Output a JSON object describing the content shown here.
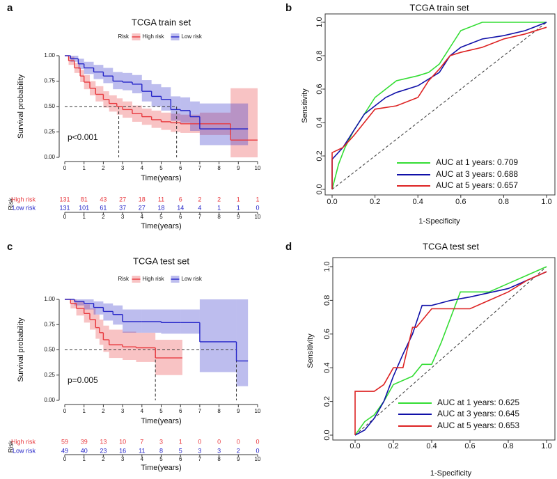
{
  "chart_data": [
    {
      "type": "survival",
      "panel": "a",
      "title": "TCGA train set",
      "xlabel": "Time(years)",
      "ylabel": "Survival probability",
      "legend_title": "Risk",
      "annotation": "p<0.001",
      "xlim": [
        0,
        10
      ],
      "xticks": [
        0,
        1,
        2,
        3,
        4,
        5,
        6,
        7,
        8,
        9,
        10
      ],
      "ylim": [
        0,
        1
      ],
      "yticks": [
        {
          "value": 0,
          "label": "0.00"
        },
        {
          "value": 0.25,
          "label": "0.25"
        },
        {
          "value": 0.5,
          "label": "0.50"
        },
        {
          "value": 0.75,
          "label": "0.75"
        },
        {
          "value": 1,
          "label": "1.00"
        }
      ],
      "median_level": 0.5,
      "median_survival": [
        2.8,
        5.8
      ],
      "series": [
        {
          "name": "High risk",
          "color": "#e8383d",
          "x": [
            0,
            0.2,
            0.5,
            0.8,
            1,
            1.3,
            1.6,
            2,
            2.3,
            2.7,
            3,
            3.5,
            4,
            4.5,
            5,
            5.5,
            6,
            7,
            8.6,
            10
          ],
          "values": [
            1,
            0.95,
            0.88,
            0.8,
            0.74,
            0.68,
            0.62,
            0.57,
            0.53,
            0.5,
            0.47,
            0.43,
            0.4,
            0.37,
            0.35,
            0.34,
            0.33,
            0.33,
            0.17,
            0.17
          ],
          "lower": [
            1,
            0.91,
            0.83,
            0.74,
            0.67,
            0.61,
            0.55,
            0.49,
            0.45,
            0.42,
            0.39,
            0.35,
            0.32,
            0.29,
            0.27,
            0.25,
            0.24,
            0.22,
            0,
            0
          ],
          "upper": [
            1,
            0.99,
            0.93,
            0.86,
            0.81,
            0.75,
            0.7,
            0.65,
            0.61,
            0.58,
            0.55,
            0.51,
            0.48,
            0.46,
            0.44,
            0.43,
            0.42,
            0.44,
            0.68,
            0.68
          ]
        },
        {
          "name": "Low risk",
          "color": "#2424c8",
          "x": [
            0,
            0.3,
            0.7,
            1,
            1.5,
            2,
            2.5,
            3,
            3.5,
            4,
            4.5,
            5,
            5.5,
            6,
            6.5,
            7,
            9.5
          ],
          "values": [
            1,
            0.97,
            0.92,
            0.88,
            0.84,
            0.8,
            0.75,
            0.74,
            0.72,
            0.65,
            0.6,
            0.57,
            0.47,
            0.46,
            0.4,
            0.28,
            0.28
          ],
          "lower": [
            1,
            0.94,
            0.87,
            0.82,
            0.77,
            0.73,
            0.67,
            0.66,
            0.63,
            0.55,
            0.5,
            0.46,
            0.36,
            0.34,
            0.26,
            0.12,
            0.12
          ],
          "upper": [
            1,
            1,
            0.97,
            0.94,
            0.91,
            0.88,
            0.84,
            0.83,
            0.81,
            0.76,
            0.72,
            0.69,
            0.6,
            0.59,
            0.55,
            0.53,
            0.53
          ]
        }
      ],
      "risk_table": {
        "title": "Risk",
        "xlabel": "Time(years)",
        "x": [
          0,
          1,
          2,
          3,
          4,
          5,
          6,
          7,
          8,
          9,
          10
        ],
        "rows": [
          {
            "name": "High risk",
            "color": "#e8383d",
            "values": [
              131,
              81,
              43,
              27,
              18,
              11,
              6,
              2,
              2,
              1,
              1
            ]
          },
          {
            "name": "Low risk",
            "color": "#2424c8",
            "values": [
              131,
              101,
              61,
              37,
              27,
              18,
              14,
              4,
              1,
              1,
              0
            ]
          }
        ]
      }
    },
    {
      "type": "roc",
      "panel": "b",
      "title": "TCGA train set",
      "xlabel": "1-Specificity",
      "ylabel": "Sensitivity",
      "xlim": [
        0,
        1
      ],
      "xticks": [
        {
          "value": 0,
          "label": "0.0"
        },
        {
          "value": 0.2,
          "label": "0.2"
        },
        {
          "value": 0.4,
          "label": "0.4"
        },
        {
          "value": 0.6,
          "label": "0.6"
        },
        {
          "value": 0.8,
          "label": "0.8"
        },
        {
          "value": 1,
          "label": "1.0"
        }
      ],
      "ylim": [
        0,
        1
      ],
      "yticks": [
        {
          "value": 0,
          "label": "0.0"
        },
        {
          "value": 0.2,
          "label": "0.2"
        },
        {
          "value": 0.4,
          "label": "0.4"
        },
        {
          "value": 0.6,
          "label": "0.6"
        },
        {
          "value": 0.8,
          "label": "0.8"
        },
        {
          "value": 1,
          "label": "1.0"
        }
      ],
      "legend": "bottom-right",
      "series": [
        {
          "name": "AUC at 1 years: 0.709",
          "color": "#33dd33",
          "x": [
            0,
            0.01,
            0.03,
            0.06,
            0.1,
            0.15,
            0.2,
            0.25,
            0.3,
            0.4,
            0.45,
            0.5,
            0.55,
            0.6,
            0.7,
            0.8,
            0.9,
            1
          ],
          "values": [
            0,
            0.05,
            0.15,
            0.25,
            0.35,
            0.45,
            0.55,
            0.6,
            0.65,
            0.68,
            0.7,
            0.75,
            0.85,
            0.95,
            1,
            1,
            1,
            1
          ]
        },
        {
          "name": "AUC at 3 years: 0.688",
          "color": "#1010a8",
          "x": [
            0,
            0,
            0.05,
            0.1,
            0.15,
            0.2,
            0.25,
            0.3,
            0.4,
            0.5,
            0.55,
            0.6,
            0.7,
            0.8,
            0.9,
            1
          ],
          "values": [
            0,
            0.18,
            0.25,
            0.35,
            0.45,
            0.5,
            0.55,
            0.58,
            0.62,
            0.7,
            0.8,
            0.85,
            0.9,
            0.92,
            0.95,
            1
          ]
        },
        {
          "name": "AUC at 5 years: 0.657",
          "color": "#dd2222",
          "x": [
            0,
            0,
            0.05,
            0.1,
            0.15,
            0.2,
            0.3,
            0.4,
            0.45,
            0.5,
            0.55,
            0.6,
            0.7,
            0.8,
            0.9,
            1
          ],
          "values": [
            0,
            0.22,
            0.25,
            0.32,
            0.4,
            0.48,
            0.5,
            0.55,
            0.65,
            0.72,
            0.8,
            0.82,
            0.85,
            0.9,
            0.93,
            0.97
          ]
        }
      ]
    },
    {
      "type": "survival",
      "panel": "c",
      "title": "TCGA test set",
      "xlabel": "Time(years)",
      "ylabel": "Survival probability",
      "legend_title": "Risk",
      "annotation": "p=0.005",
      "xlim": [
        0,
        10
      ],
      "xticks": [
        0,
        1,
        2,
        3,
        4,
        5,
        6,
        7,
        8,
        9,
        10
      ],
      "ylim": [
        0,
        1
      ],
      "yticks": [
        {
          "value": 0,
          "label": "0.00"
        },
        {
          "value": 0.25,
          "label": "0.25"
        },
        {
          "value": 0.5,
          "label": "0.50"
        },
        {
          "value": 0.75,
          "label": "0.75"
        },
        {
          "value": 1,
          "label": "1.00"
        }
      ],
      "median_level": 0.5,
      "median_survival": [
        4.7,
        8.9
      ],
      "series": [
        {
          "name": "High risk",
          "color": "#e8383d",
          "x": [
            0,
            0.3,
            0.6,
            1,
            1.3,
            1.6,
            1.8,
            2,
            2.3,
            3,
            3.7,
            4.7,
            6.1
          ],
          "values": [
            1,
            0.96,
            0.91,
            0.86,
            0.8,
            0.72,
            0.67,
            0.6,
            0.55,
            0.53,
            0.52,
            0.42,
            0.42
          ],
          "lower": [
            1,
            0.91,
            0.84,
            0.77,
            0.7,
            0.61,
            0.55,
            0.48,
            0.42,
            0.4,
            0.38,
            0.25,
            0.25
          ],
          "upper": [
            1,
            1,
            0.98,
            0.95,
            0.91,
            0.85,
            0.8,
            0.74,
            0.7,
            0.68,
            0.67,
            0.6,
            0.6
          ]
        },
        {
          "name": "Low risk",
          "color": "#2424c8",
          "x": [
            0,
            0.5,
            1,
            1.5,
            2,
            2.5,
            3,
            4,
            5,
            6,
            7,
            8.9,
            9.5
          ],
          "values": [
            1,
            0.98,
            0.96,
            0.92,
            0.88,
            0.85,
            0.78,
            0.78,
            0.77,
            0.77,
            0.58,
            0.39,
            0.39
          ],
          "lower": [
            1,
            0.94,
            0.9,
            0.85,
            0.79,
            0.75,
            0.67,
            0.67,
            0.66,
            0.66,
            0.28,
            0.14,
            0.14
          ],
          "upper": [
            1,
            1,
            1,
            0.98,
            0.96,
            0.94,
            0.9,
            0.9,
            0.9,
            0.9,
            1,
            1,
            1
          ]
        }
      ],
      "risk_table": {
        "title": "Risk",
        "xlabel": "Time(years)",
        "x": [
          0,
          1,
          2,
          3,
          4,
          5,
          6,
          7,
          8,
          9,
          10
        ],
        "rows": [
          {
            "name": "High risk",
            "color": "#e8383d",
            "values": [
              59,
              39,
              13,
              10,
              7,
              3,
              1,
              0,
              0,
              0,
              0
            ]
          },
          {
            "name": "Low risk",
            "color": "#2424c8",
            "values": [
              49,
              40,
              23,
              16,
              11,
              8,
              5,
              3,
              3,
              2,
              0
            ]
          }
        ]
      }
    },
    {
      "type": "roc",
      "panel": "d",
      "title": "TCGA test set",
      "xlabel": "1-Specificity",
      "ylabel": "Sensitivity",
      "xlim": [
        0,
        1
      ],
      "xticks": [
        {
          "value": 0,
          "label": "0.0"
        },
        {
          "value": 0.2,
          "label": "0.2"
        },
        {
          "value": 0.4,
          "label": "0.4"
        },
        {
          "value": 0.6,
          "label": "0.6"
        },
        {
          "value": 0.8,
          "label": "0.8"
        },
        {
          "value": 1,
          "label": "1.0"
        }
      ],
      "ylim": [
        0,
        1
      ],
      "yticks": [
        {
          "value": 0,
          "label": "0.0"
        },
        {
          "value": 0.2,
          "label": "0.2"
        },
        {
          "value": 0.4,
          "label": "0.4"
        },
        {
          "value": 0.6,
          "label": "0.6"
        },
        {
          "value": 0.8,
          "label": "0.8"
        },
        {
          "value": 1,
          "label": "1.0"
        }
      ],
      "legend": "bottom-right",
      "series": [
        {
          "name": "AUC at 1 years: 0.625",
          "color": "#33dd33",
          "x": [
            0,
            0.05,
            0.1,
            0.15,
            0.2,
            0.3,
            0.35,
            0.4,
            0.45,
            0.5,
            0.55,
            0.6,
            0.7,
            0.8,
            0.9,
            1
          ],
          "values": [
            0,
            0.08,
            0.12,
            0.2,
            0.3,
            0.35,
            0.42,
            0.42,
            0.55,
            0.7,
            0.85,
            0.85,
            0.85,
            0.9,
            0.95,
            1
          ]
        },
        {
          "name": "AUC at 3 years: 0.645",
          "color": "#1010a8",
          "x": [
            0,
            0.05,
            0.1,
            0.15,
            0.2,
            0.25,
            0.3,
            0.35,
            0.4,
            0.5,
            0.6,
            0.8,
            0.9,
            1
          ],
          "values": [
            0,
            0.03,
            0.1,
            0.2,
            0.35,
            0.48,
            0.6,
            0.77,
            0.77,
            0.8,
            0.82,
            0.87,
            0.92,
            0.97
          ]
        },
        {
          "name": "AUC at 5 years: 0.653",
          "color": "#dd2222",
          "x": [
            0,
            0,
            0.1,
            0.15,
            0.2,
            0.25,
            0.3,
            0.32,
            0.4,
            0.5,
            0.6,
            0.7,
            0.8,
            0.9,
            1
          ],
          "values": [
            0,
            0.26,
            0.26,
            0.3,
            0.4,
            0.4,
            0.64,
            0.64,
            0.75,
            0.75,
            0.75,
            0.8,
            0.85,
            0.92,
            0.97
          ]
        }
      ]
    }
  ]
}
